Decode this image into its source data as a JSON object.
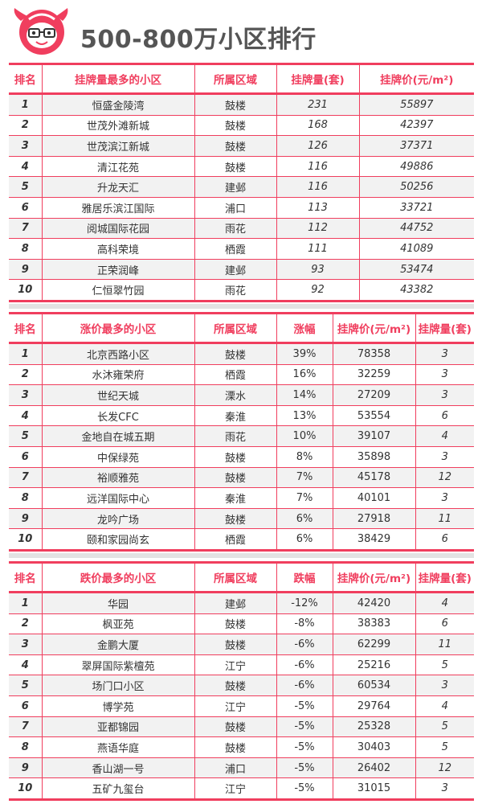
{
  "title": "500-800万小区排行",
  "colors": {
    "accent": "#f03e5e",
    "row_alt": "#f2f2f2"
  },
  "tables": [
    {
      "headers": [
        "排名",
        "挂牌量最多的小区",
        "所属区域",
        "挂牌量(套)",
        "挂牌价(元/m²)"
      ],
      "rows": [
        [
          "1",
          "恒盛金陵湾",
          "鼓楼",
          "231",
          "55897"
        ],
        [
          "2",
          "世茂外滩新城",
          "鼓楼",
          "168",
          "42397"
        ],
        [
          "3",
          "世茂滨江新城",
          "鼓楼",
          "126",
          "37371"
        ],
        [
          "4",
          "清江花苑",
          "鼓楼",
          "116",
          "49886"
        ],
        [
          "5",
          "升龙天汇",
          "建邺",
          "116",
          "50256"
        ],
        [
          "6",
          "雅居乐滨江国际",
          "浦口",
          "113",
          "33721"
        ],
        [
          "7",
          "阅城国际花园",
          "雨花",
          "112",
          "44752"
        ],
        [
          "8",
          "高科荣境",
          "栖霞",
          "111",
          "41089"
        ],
        [
          "9",
          "正荣润峰",
          "建邺",
          "93",
          "53474"
        ],
        [
          "10",
          "仁恒翠竹园",
          "雨花",
          "92",
          "43382"
        ]
      ]
    },
    {
      "headers": [
        "排名",
        "涨价最多的小区",
        "所属区域",
        "涨幅",
        "挂牌价(元/m²)",
        "挂牌量(套)"
      ],
      "rows": [
        [
          "1",
          "北京西路小区",
          "鼓楼",
          "39%",
          "78358",
          "3"
        ],
        [
          "2",
          "水沐雍荣府",
          "栖霞",
          "16%",
          "32259",
          "3"
        ],
        [
          "3",
          "世纪天城",
          "溧水",
          "14%",
          "27209",
          "3"
        ],
        [
          "4",
          "长发CFC",
          "秦淮",
          "13%",
          "53554",
          "6"
        ],
        [
          "5",
          "金地自在城五期",
          "雨花",
          "10%",
          "39107",
          "4"
        ],
        [
          "6",
          "中保绿苑",
          "鼓楼",
          "8%",
          "35898",
          "3"
        ],
        [
          "7",
          "裕顺雅苑",
          "鼓楼",
          "7%",
          "45178",
          "12"
        ],
        [
          "8",
          "远洋国际中心",
          "秦淮",
          "7%",
          "40101",
          "3"
        ],
        [
          "9",
          "龙吟广场",
          "鼓楼",
          "6%",
          "27918",
          "11"
        ],
        [
          "10",
          "颐和家园尚玄",
          "栖霞",
          "6%",
          "38429",
          "6"
        ]
      ]
    },
    {
      "headers": [
        "排名",
        "跌价最多的小区",
        "所属区域",
        "跌幅",
        "挂牌价(元/m²)",
        "挂牌量(套)"
      ],
      "rows": [
        [
          "1",
          "华园",
          "建邺",
          "-12%",
          "42420",
          "4"
        ],
        [
          "2",
          "枫亚苑",
          "鼓楼",
          "-8%",
          "38383",
          "6"
        ],
        [
          "3",
          "金鹏大厦",
          "鼓楼",
          "-6%",
          "62299",
          "11"
        ],
        [
          "4",
          "翠屏国际紫檀苑",
          "江宁",
          "-6%",
          "25216",
          "5"
        ],
        [
          "5",
          "场门口小区",
          "鼓楼",
          "-6%",
          "60534",
          "3"
        ],
        [
          "6",
          "博学苑",
          "江宁",
          "-5%",
          "29764",
          "4"
        ],
        [
          "7",
          "亚都锦园",
          "鼓楼",
          "-5%",
          "25328",
          "5"
        ],
        [
          "8",
          "燕语华庭",
          "鼓楼",
          "-5%",
          "30403",
          "5"
        ],
        [
          "9",
          "香山湖一号",
          "浦口",
          "-5%",
          "26402",
          "12"
        ],
        [
          "10",
          "五矿九玺台",
          "江宁",
          "-5%",
          "31015",
          "3"
        ]
      ]
    }
  ]
}
